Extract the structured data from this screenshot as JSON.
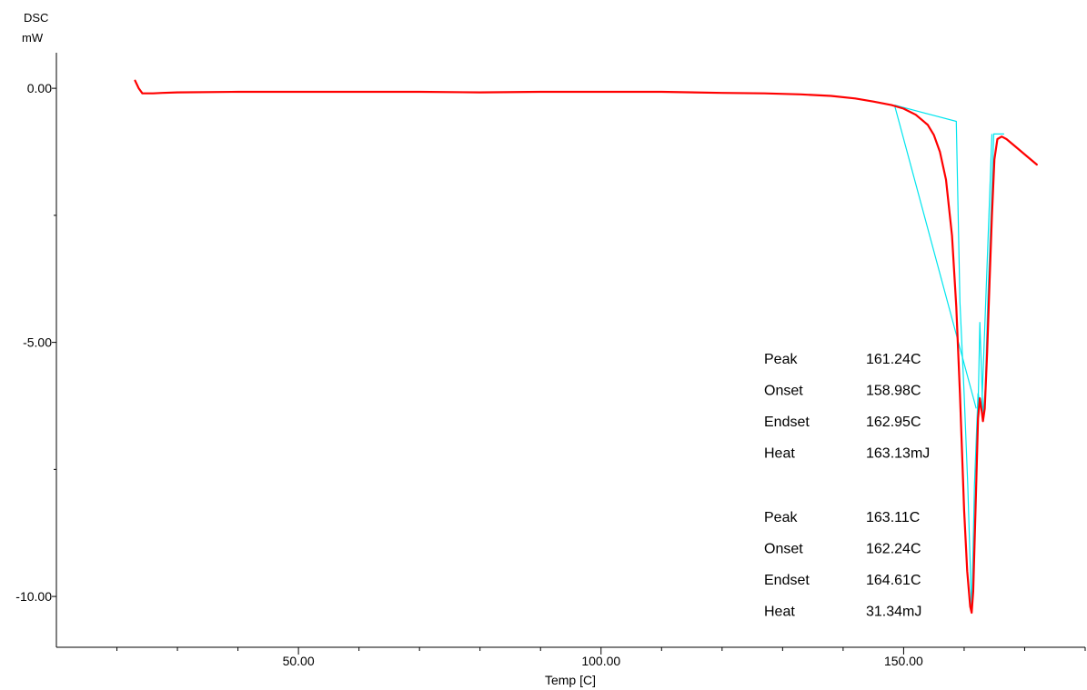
{
  "chart_data": {
    "type": "line",
    "ylabel": "DSC",
    "yunit": "mW",
    "xlabel": "Temp [C]",
    "xlim": [
      10,
      180
    ],
    "ylim": [
      -11.0,
      0.7
    ],
    "x_ticks": [
      50,
      100,
      150
    ],
    "x_tick_labels": [
      "50.00",
      "100.00",
      "150.00"
    ],
    "y_ticks": [
      0,
      -5,
      -10
    ],
    "y_tick_labels": [
      "0.00",
      "-5.00",
      "-10.00"
    ],
    "grid": false,
    "colors": {
      "curve": "#ff0000",
      "baseline": "#00e5ee",
      "axis": "#000000"
    },
    "series": [
      {
        "x": [
          23.0,
          23.6,
          24.2,
          25.0,
          26.0,
          27.5,
          30,
          40,
          50,
          60,
          70,
          80,
          90,
          100,
          110,
          120,
          127,
          133,
          138,
          142,
          145,
          148,
          150,
          152,
          154,
          155,
          156,
          157,
          158,
          158.7,
          159.3,
          160.0,
          160.5,
          161.0,
          161.24,
          161.5,
          161.9,
          162.3,
          162.6,
          162.95,
          163.11,
          163.4,
          163.8,
          164.2,
          164.6,
          165.0,
          165.5,
          166.2,
          167.0,
          168.5,
          170.5,
          172.0
        ],
        "y": [
          0.15,
          0.0,
          -0.1,
          -0.1,
          -0.1,
          -0.09,
          -0.08,
          -0.07,
          -0.07,
          -0.07,
          -0.07,
          -0.08,
          -0.07,
          -0.07,
          -0.07,
          -0.09,
          -0.1,
          -0.12,
          -0.15,
          -0.2,
          -0.26,
          -0.33,
          -0.4,
          -0.52,
          -0.72,
          -0.92,
          -1.25,
          -1.8,
          -2.9,
          -4.3,
          -6.0,
          -8.3,
          -9.5,
          -10.2,
          -10.32,
          -9.9,
          -8.2,
          -6.5,
          -6.1,
          -6.4,
          -6.55,
          -6.3,
          -5.2,
          -3.8,
          -2.5,
          -1.4,
          -1.0,
          -0.95,
          -1.0,
          -1.15,
          -1.35,
          -1.5
        ]
      }
    ],
    "baselines": [
      {
        "x": [
          148.5,
          158.7,
          159.3,
          160.0,
          160.6,
          161.24,
          161.7,
          162.3,
          162.9
        ],
        "y": [
          -0.33,
          -0.65,
          -4.2,
          -6.0,
          -7.8,
          -10.32,
          -7.8,
          -6.0,
          -6.35
        ]
      },
      {
        "x": [
          162.3,
          162.6,
          163.11,
          163.5,
          163.9,
          164.4,
          164.9,
          165.6,
          166.6
        ],
        "y": [
          -6.35,
          -4.6,
          -6.45,
          -5.9,
          -4.2,
          -2.6,
          -0.9,
          -0.9,
          -0.9
        ]
      },
      {
        "x": [
          148.5,
          162.0
        ],
        "y": [
          -0.33,
          -6.3
        ]
      },
      {
        "x": [
          162.9,
          164.6
        ],
        "y": [
          -6.35,
          -0.9
        ]
      }
    ],
    "annotations": [
      {
        "group": 1,
        "rows": [
          {
            "label": "Peak",
            "value": "161.24C"
          },
          {
            "label": "Onset",
            "value": "158.98C"
          },
          {
            "label": "Endset",
            "value": "162.95C"
          },
          {
            "label": "Heat",
            "value": "163.13mJ"
          }
        ]
      },
      {
        "group": 2,
        "rows": [
          {
            "label": "Peak",
            "value": "163.11C"
          },
          {
            "label": "Onset",
            "value": "162.24C"
          },
          {
            "label": "Endset",
            "value": "164.61C"
          },
          {
            "label": "Heat",
            "value": "31.34mJ"
          }
        ]
      }
    ]
  }
}
